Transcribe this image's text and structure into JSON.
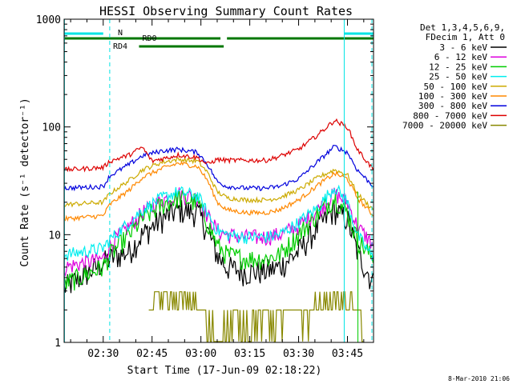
{
  "chart_data": {
    "type": "line",
    "title": "HESSI Observing Summary Count Rates",
    "xlabel": "Start Time (17-Jun-09 02:18:22)",
    "ylabel": "Count Rate (s⁻¹ detector⁻¹)",
    "xlim_minutes": [
      0,
      95
    ],
    "ylim": [
      1,
      1000
    ],
    "y_scale": "log",
    "x_ticks": [
      {
        "minute": 12,
        "label": "02:30"
      },
      {
        "minute": 27,
        "label": "02:45"
      },
      {
        "minute": 42,
        "label": "03:00"
      },
      {
        "minute": 57,
        "label": "03:15"
      },
      {
        "minute": 72,
        "label": "03:30"
      },
      {
        "minute": 87,
        "label": "03:45"
      }
    ],
    "y_ticks": [
      {
        "value": 1,
        "label": "1"
      },
      {
        "value": 10,
        "label": "10"
      },
      {
        "value": 100,
        "label": "100"
      },
      {
        "value": 1000,
        "label": "1000"
      }
    ],
    "legend": {
      "position": "right",
      "header": [
        "Det 1,3,4,5,6,9,",
        "FDecim 1, Att 0"
      ]
    },
    "series": [
      {
        "name": "3 - 6 keV",
        "color": "#000000",
        "x": [
          0,
          12,
          14,
          20,
          24,
          30,
          35,
          41,
          44,
          47,
          50,
          56,
          62,
          66,
          72,
          78,
          83,
          87,
          90,
          95
        ],
        "y": [
          3.2,
          5.5,
          6,
          7,
          10,
          14,
          17,
          16,
          11,
          6.5,
          5,
          4.5,
          4.6,
          5,
          7,
          12,
          17,
          14,
          7,
          3.5
        ]
      },
      {
        "name": "6 - 12 keV",
        "color": "#dd00dd",
        "x": [
          0,
          12,
          14,
          20,
          24,
          30,
          35,
          41,
          44,
          47,
          50,
          56,
          62,
          66,
          72,
          78,
          83,
          87,
          90,
          95
        ],
        "y": [
          5,
          6,
          8,
          12,
          16,
          21,
          24,
          22,
          15,
          11,
          10,
          9.5,
          9.5,
          10,
          12,
          17,
          24,
          20,
          12,
          8
        ]
      },
      {
        "name": "12 - 25 keV",
        "color": "#00cc00",
        "x": [
          0,
          12,
          14,
          20,
          24,
          30,
          35,
          41,
          44,
          47,
          50,
          56,
          62,
          66,
          72,
          78,
          83,
          87,
          90,
          95
        ],
        "y": [
          3.5,
          5,
          6.5,
          10,
          14,
          19,
          22,
          20,
          13,
          8,
          6.5,
          6,
          6,
          6.5,
          10,
          16,
          22,
          16,
          9,
          6
        ]
      },
      {
        "name": "25 - 50 keV",
        "color": "#00eeee",
        "x": [
          0,
          12,
          14,
          20,
          24,
          30,
          35,
          41,
          44,
          47,
          50,
          56,
          62,
          66,
          72,
          78,
          83,
          87,
          90,
          95
        ],
        "y": [
          6.5,
          7.5,
          9,
          13,
          17,
          22,
          25,
          23,
          16,
          11,
          10,
          9.5,
          9.5,
          10,
          13,
          18,
          28,
          20,
          10,
          6
        ]
      },
      {
        "name": "50 - 100 keV",
        "color": "#ccaa00",
        "x": [
          0,
          12,
          14,
          20,
          24,
          30,
          35,
          41,
          44,
          47,
          50,
          56,
          62,
          66,
          72,
          78,
          83,
          87,
          90,
          95
        ],
        "y": [
          19,
          20,
          24,
          32,
          40,
          47,
          50,
          48,
          38,
          25,
          22,
          21,
          21,
          22,
          26,
          34,
          40,
          36,
          24,
          17
        ]
      },
      {
        "name": "100 - 300 keV",
        "color": "#ff8800",
        "x": [
          0,
          12,
          14,
          20,
          24,
          30,
          35,
          41,
          44,
          47,
          50,
          56,
          62,
          66,
          72,
          78,
          83,
          87,
          90,
          95
        ],
        "y": [
          14,
          15,
          19,
          26,
          34,
          41,
          46,
          43,
          32,
          20,
          17,
          16,
          16,
          17,
          21,
          29,
          37,
          33,
          22,
          15
        ]
      },
      {
        "name": "300 - 800 keV",
        "color": "#0000dd",
        "x": [
          0,
          12,
          14,
          20,
          24,
          30,
          35,
          41,
          44,
          47,
          50,
          56,
          62,
          66,
          72,
          78,
          83,
          87,
          90,
          95
        ],
        "y": [
          27,
          28,
          35,
          45,
          54,
          60,
          62,
          58,
          45,
          31,
          28,
          27,
          27,
          28,
          33,
          48,
          66,
          58,
          40,
          28
        ]
      },
      {
        "name": "800 - 7000 keV",
        "color": "#dd0000",
        "x": [
          0,
          12,
          14,
          20,
          24,
          27,
          29,
          32,
          35,
          41,
          44,
          47,
          50,
          56,
          62,
          66,
          72,
          78,
          83,
          87,
          90,
          95
        ],
        "y": [
          40,
          42,
          48,
          55,
          65,
          48,
          50,
          52,
          55,
          52,
          45,
          50,
          49,
          49,
          49,
          53,
          62,
          85,
          115,
          100,
          62,
          40
        ]
      },
      {
        "name": "7000 - 20000 keV",
        "color": "#888800",
        "x": [
          26,
          28,
          30,
          33,
          36,
          38,
          40,
          42,
          44,
          78,
          80,
          82,
          84,
          86,
          88,
          90,
          92
        ],
        "y": [
          1.8,
          2.5,
          2.8,
          2.5,
          2.7,
          2.2,
          2.5,
          1.7,
          1.3,
          2,
          2.5,
          2.8,
          2.5,
          2.2,
          2.6,
          1.8,
          1.3
        ]
      }
    ],
    "annotations": [
      "N",
      "RD0",
      "RD4"
    ],
    "footer": "8-Mar-2010 21:06"
  }
}
